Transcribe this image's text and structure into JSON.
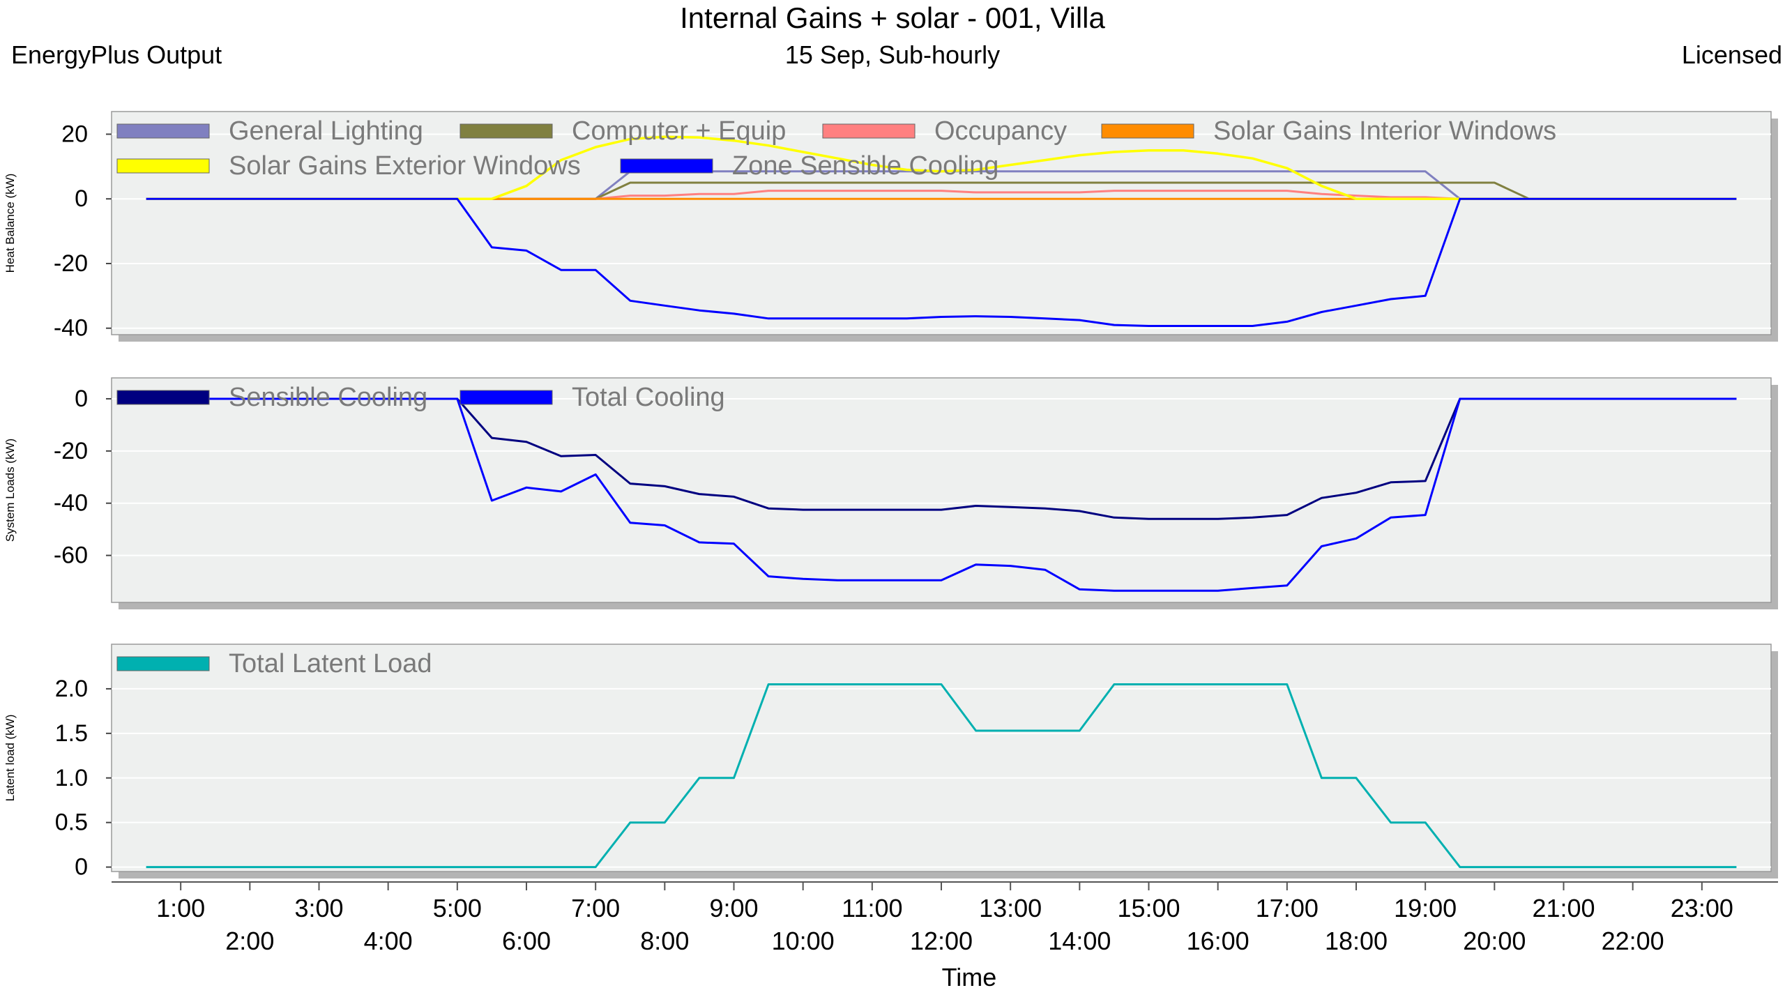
{
  "header": {
    "title": "Internal Gains + solar - 001, Villa",
    "left": "EnergyPlus Output",
    "center": "15 Sep, Sub-hourly",
    "right": "Licensed"
  },
  "chart_data": [
    {
      "type": "line",
      "ylabel": "Heat Balance (kW)",
      "ylim": [
        -42,
        27
      ],
      "yticks": [
        20,
        0,
        -20,
        -40
      ],
      "ytick_labels": [
        "20",
        "0",
        "-20",
        "-40"
      ],
      "grid": true,
      "legend_placement": "top",
      "x": [
        0.5,
        1,
        1.5,
        2,
        2.5,
        3,
        3.5,
        4,
        4.5,
        5,
        5.5,
        6,
        6.5,
        7,
        7.5,
        8,
        8.5,
        9,
        9.5,
        10,
        10.5,
        11,
        11.5,
        12,
        12.5,
        13,
        13.5,
        14,
        14.5,
        15,
        15.5,
        16,
        16.5,
        17,
        17.5,
        18,
        18.5,
        19,
        19.5,
        20,
        20.5,
        21,
        21.5,
        22,
        22.5,
        23,
        23.5
      ],
      "series": [
        {
          "name": "General Lighting",
          "color": "#8080c0",
          "values": [
            0,
            0,
            0,
            0,
            0,
            0,
            0,
            0,
            0,
            0,
            0,
            0,
            0,
            0,
            8.5,
            8.5,
            8.5,
            8.5,
            8.5,
            8.5,
            8.5,
            8.5,
            8.5,
            8.5,
            8.5,
            8.5,
            8.5,
            8.5,
            8.5,
            8.5,
            8.5,
            8.5,
            8.5,
            8.5,
            8.5,
            8.5,
            8.5,
            8.5,
            0,
            0,
            0,
            0,
            0,
            0,
            0,
            0,
            0
          ]
        },
        {
          "name": "Computer + Equip",
          "color": "#808040",
          "values": [
            0,
            0,
            0,
            0,
            0,
            0,
            0,
            0,
            0,
            0,
            0,
            0,
            0,
            0,
            5,
            5,
            5,
            5,
            5,
            5,
            5,
            5,
            5,
            5,
            5,
            5,
            5,
            5,
            5,
            5,
            5,
            5,
            5,
            5,
            5,
            5,
            5,
            5,
            5,
            5,
            0,
            0,
            0,
            0,
            0,
            0,
            0
          ]
        },
        {
          "name": "Occupancy",
          "color": "#ff8080",
          "values": [
            0,
            0,
            0,
            0,
            0,
            0,
            0,
            0,
            0,
            0,
            0,
            0,
            0,
            0,
            1,
            1,
            1.5,
            1.5,
            2.5,
            2.5,
            2.5,
            2.5,
            2.5,
            2.5,
            2,
            2,
            2,
            2,
            2.5,
            2.5,
            2.5,
            2.5,
            2.5,
            2.5,
            1.5,
            1,
            0.5,
            0.5,
            0,
            0,
            0,
            0,
            0,
            0,
            0,
            0,
            0
          ]
        },
        {
          "name": "Solar Gains Interior Windows",
          "color": "#ff8c00",
          "values": [
            0,
            0,
            0,
            0,
            0,
            0,
            0,
            0,
            0,
            0,
            0,
            0,
            0,
            0,
            0,
            0,
            0,
            0,
            0,
            0,
            0,
            0,
            0,
            0,
            0,
            0,
            0,
            0,
            0,
            0,
            0,
            0,
            0,
            0,
            0,
            0,
            0,
            0,
            0,
            0,
            0,
            0,
            0,
            0,
            0,
            0,
            0
          ]
        },
        {
          "name": "Solar Gains Exterior Windows",
          "color": "#ffff00",
          "values": [
            0,
            0,
            0,
            0,
            0,
            0,
            0,
            0,
            0,
            0,
            0,
            4,
            12,
            16,
            18.5,
            19.2,
            19,
            18,
            16.5,
            14.5,
            12.5,
            10.5,
            9,
            8.5,
            9,
            10.5,
            12,
            13.5,
            14.5,
            15,
            15,
            14,
            12.5,
            9.5,
            4,
            0,
            0,
            0,
            0,
            0,
            0,
            0,
            0,
            0,
            0,
            0,
            0
          ]
        },
        {
          "name": "Zone Sensible Cooling",
          "color": "#0000ff",
          "values": [
            0,
            0,
            0,
            0,
            0,
            0,
            0,
            0,
            0,
            0,
            -15,
            -16,
            -22,
            -22,
            -31.5,
            -33,
            -34.5,
            -35.5,
            -37,
            -37,
            -37,
            -37,
            -37,
            -36.5,
            -36.3,
            -36.5,
            -37,
            -37.5,
            -39,
            -39.3,
            -39.3,
            -39.3,
            -39.3,
            -38,
            -35,
            -33,
            -31,
            -30,
            0,
            0,
            0,
            0,
            0,
            0,
            0,
            0,
            0
          ]
        }
      ]
    },
    {
      "type": "line",
      "ylabel": "System Loads (kW)",
      "ylim": [
        -78,
        8
      ],
      "yticks": [
        0,
        -20,
        -40,
        -60
      ],
      "ytick_labels": [
        "0",
        "-20",
        "-40",
        "-60"
      ],
      "grid": true,
      "legend_placement": "top",
      "x": [
        0.5,
        1,
        1.5,
        2,
        2.5,
        3,
        3.5,
        4,
        4.5,
        5,
        5.5,
        6,
        6.5,
        7,
        7.5,
        8,
        8.5,
        9,
        9.5,
        10,
        10.5,
        11,
        11.5,
        12,
        12.5,
        13,
        13.5,
        14,
        14.5,
        15,
        15.5,
        16,
        16.5,
        17,
        17.5,
        18,
        18.5,
        19,
        19.5,
        20,
        20.5,
        21,
        21.5,
        22,
        22.5,
        23,
        23.5
      ],
      "series": [
        {
          "name": "Sensible Cooling",
          "color": "#000080",
          "values": [
            0,
            0,
            0,
            0,
            0,
            0,
            0,
            0,
            0,
            0,
            -15,
            -16.5,
            -22,
            -21.5,
            -32.5,
            -33.5,
            -36.5,
            -37.5,
            -42,
            -42.5,
            -42.5,
            -42.5,
            -42.5,
            -42.5,
            -41,
            -41.5,
            -42,
            -43,
            -45.5,
            -46,
            -46,
            -46,
            -45.5,
            -44.5,
            -38,
            -36,
            -32,
            -31.5,
            0,
            0,
            0,
            0,
            0,
            0,
            0,
            0,
            0
          ]
        },
        {
          "name": "Total Cooling",
          "color": "#0000ff",
          "values": [
            0,
            0,
            0,
            0,
            0,
            0,
            0,
            0,
            0,
            0,
            -39,
            -34,
            -35.5,
            -29,
            -47.5,
            -48.5,
            -55,
            -55.5,
            -68,
            -69,
            -69.5,
            -69.5,
            -69.5,
            -69.5,
            -63.5,
            -64,
            -65.5,
            -73,
            -73.5,
            -73.5,
            -73.5,
            -73.5,
            -72.5,
            -71.5,
            -56.5,
            -53.5,
            -45.5,
            -44.5,
            0,
            0,
            0,
            0,
            0,
            0,
            0,
            0,
            0
          ]
        }
      ]
    },
    {
      "type": "line",
      "ylabel": "Latent load (kW)",
      "ylim": [
        -0.05,
        2.5
      ],
      "yticks": [
        2.0,
        1.5,
        1.0,
        0.5,
        0
      ],
      "ytick_labels": [
        "2.0",
        "1.5",
        "1.0",
        "0.5",
        "0"
      ],
      "grid": true,
      "legend_placement": "top",
      "x": [
        0.5,
        1,
        1.5,
        2,
        2.5,
        3,
        3.5,
        4,
        4.5,
        5,
        5.5,
        6,
        6.5,
        7,
        7.5,
        8,
        8.5,
        9,
        9.5,
        10,
        10.5,
        11,
        11.5,
        12,
        12.5,
        13,
        13.5,
        14,
        14.5,
        15,
        15.5,
        16,
        16.5,
        17,
        17.5,
        18,
        18.5,
        19,
        19.5,
        20,
        20.5,
        21,
        21.5,
        22,
        22.5,
        23,
        23.5
      ],
      "series": [
        {
          "name": "Total Latent Load",
          "color": "#00b0b0",
          "values": [
            0,
            0,
            0,
            0,
            0,
            0,
            0,
            0,
            0,
            0,
            0,
            0,
            0,
            0,
            0.5,
            0.5,
            1,
            1,
            2.05,
            2.05,
            2.05,
            2.05,
            2.05,
            2.05,
            1.53,
            1.53,
            1.53,
            1.53,
            2.05,
            2.05,
            2.05,
            2.05,
            2.05,
            2.05,
            1,
            1,
            0.5,
            0.5,
            0,
            0,
            0,
            0,
            0,
            0,
            0,
            0,
            0
          ]
        }
      ]
    }
  ],
  "xaxis": {
    "label": "Time",
    "min": 0,
    "max": 24,
    "tick_hours": [
      1,
      2,
      3,
      4,
      5,
      6,
      7,
      8,
      9,
      10,
      11,
      12,
      13,
      14,
      15,
      16,
      17,
      18,
      19,
      20,
      21,
      22,
      23
    ],
    "tick_labels": [
      "1:00",
      "2:00",
      "3:00",
      "4:00",
      "5:00",
      "6:00",
      "7:00",
      "8:00",
      "9:00",
      "10:00",
      "11:00",
      "12:00",
      "13:00",
      "14:00",
      "15:00",
      "16:00",
      "17:00",
      "18:00",
      "19:00",
      "20:00",
      "21:00",
      "22:00",
      "23:00"
    ]
  }
}
